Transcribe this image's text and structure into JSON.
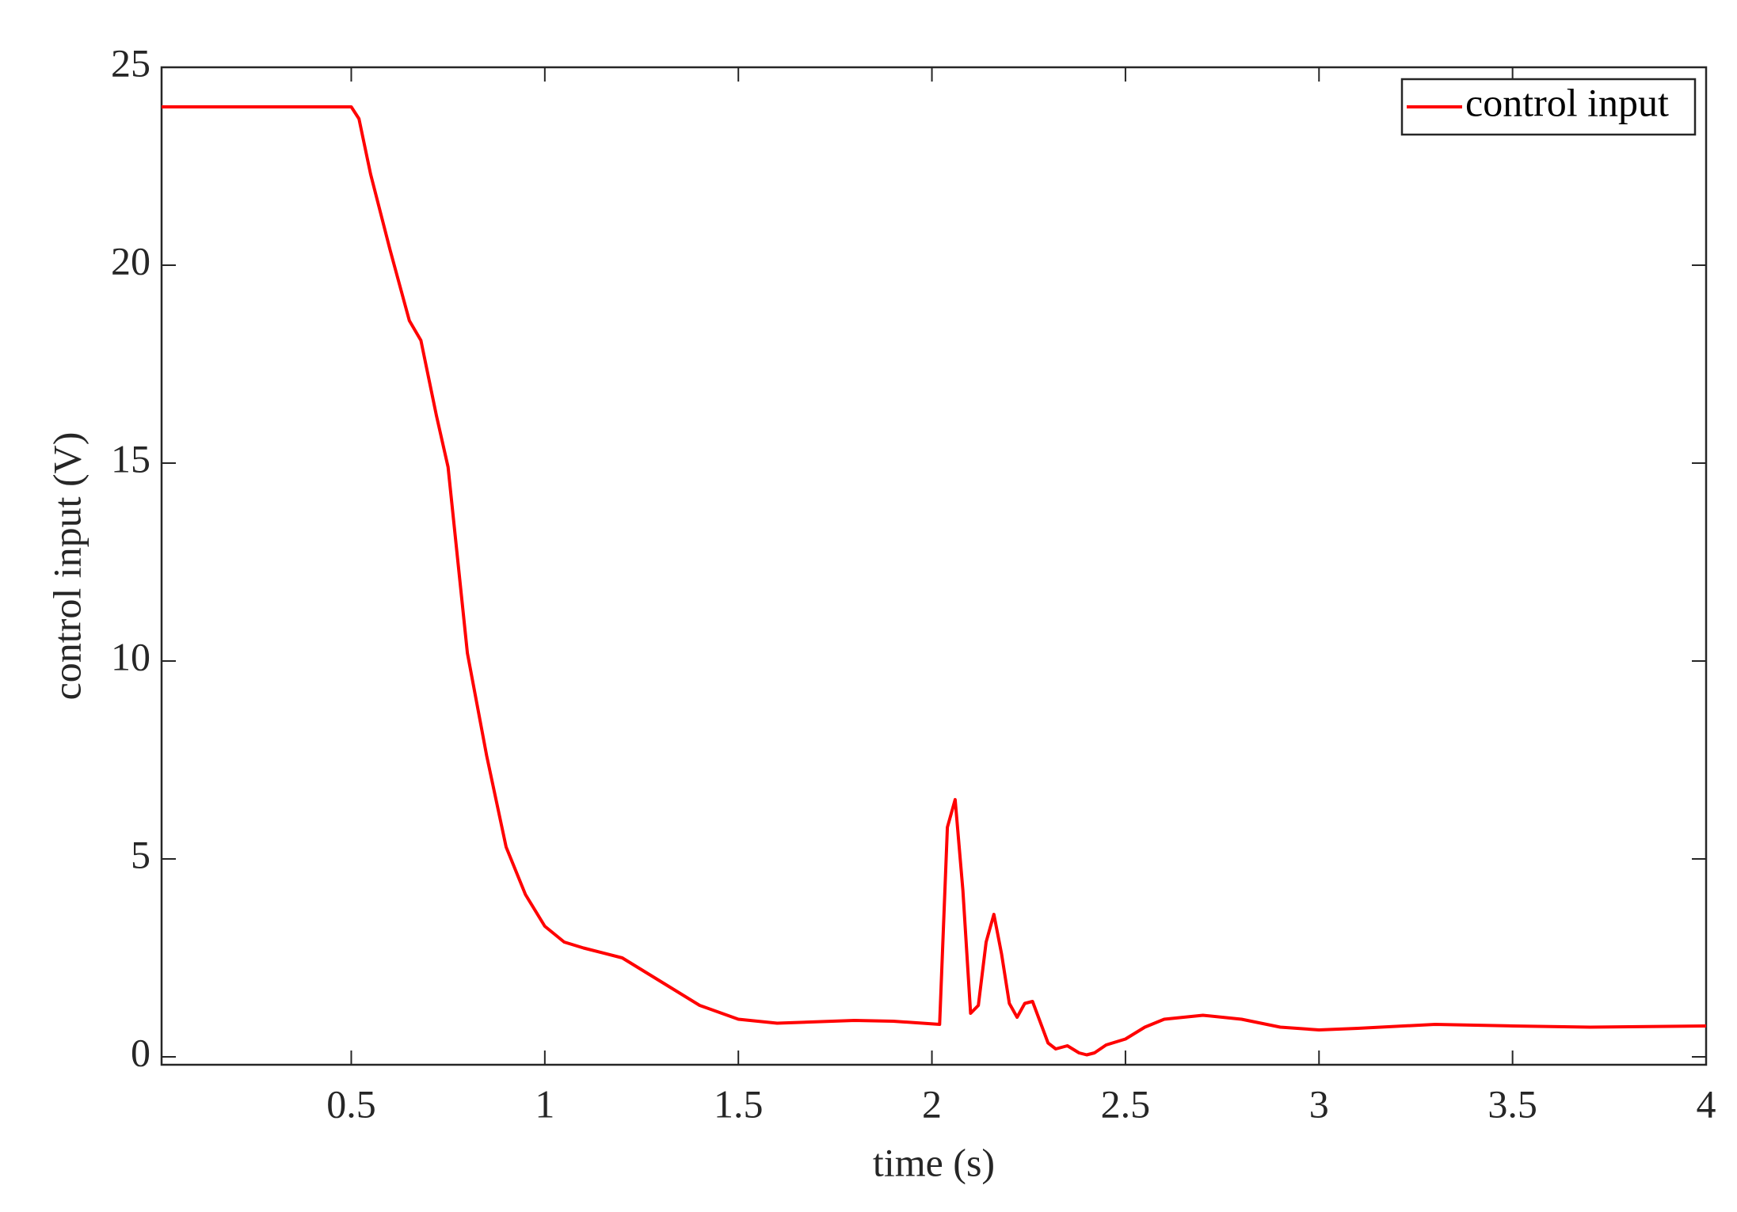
{
  "chart_data": {
    "type": "line",
    "xlabel": "time (s)",
    "ylabel": "control input (V)",
    "x": [
      0.01,
      0.5,
      0.52,
      0.55,
      0.6,
      0.65,
      0.68,
      0.72,
      0.75,
      0.8,
      0.85,
      0.9,
      0.95,
      1.0,
      1.05,
      1.1,
      1.2,
      1.3,
      1.4,
      1.5,
      1.6,
      1.8,
      1.9,
      2.02,
      2.04,
      2.06,
      2.08,
      2.1,
      2.12,
      2.14,
      2.16,
      2.18,
      2.2,
      2.22,
      2.24,
      2.26,
      2.3,
      2.32,
      2.35,
      2.38,
      2.4,
      2.42,
      2.45,
      2.5,
      2.55,
      2.6,
      2.7,
      2.8,
      2.9,
      3.0,
      3.1,
      3.3,
      3.5,
      3.7,
      4.0
    ],
    "series": [
      {
        "name": "control input",
        "color": "#ff0000",
        "values": [
          24,
          24,
          23.7,
          22.3,
          20.4,
          18.6,
          18.1,
          16.2,
          14.9,
          10.2,
          7.6,
          5.3,
          4.1,
          3.3,
          2.9,
          2.75,
          2.5,
          1.9,
          1.3,
          0.95,
          0.85,
          0.92,
          0.9,
          0.82,
          5.8,
          6.5,
          4.2,
          1.1,
          1.3,
          2.9,
          3.6,
          2.6,
          1.35,
          1.0,
          1.35,
          1.4,
          0.35,
          0.2,
          0.28,
          0.1,
          0.05,
          0.1,
          0.3,
          0.45,
          0.75,
          0.95,
          1.05,
          0.95,
          0.75,
          0.68,
          0.72,
          0.82,
          0.78,
          0.75,
          0.78
        ]
      }
    ],
    "xlim": [
      0.01,
      4
    ],
    "ylim": [
      -0.2,
      25
    ],
    "xticks": [
      0.5,
      1,
      1.5,
      2,
      2.5,
      3,
      3.5,
      4
    ],
    "yticks": [
      0,
      5,
      10,
      15,
      20,
      25
    ],
    "grid": false,
    "legend": "upper right"
  }
}
